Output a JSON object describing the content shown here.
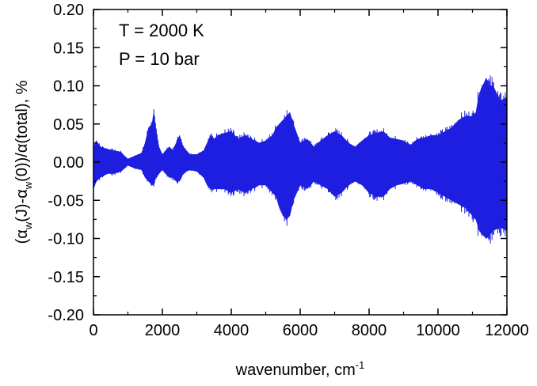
{
  "chart_data": {
    "type": "area",
    "title": "",
    "xlabel": "wavenumber, cm",
    "xlabel_sup": "-1",
    "ylabel_parts": {
      "p1": "(α",
      "p1_sub": "w",
      "p2": "(J)-α",
      "p2_sub": "w",
      "p3": "(0))/α(total), %"
    },
    "xlim": [
      0,
      12000
    ],
    "ylim": [
      -0.2,
      0.2
    ],
    "x_ticks": [
      0,
      2000,
      4000,
      6000,
      8000,
      10000,
      12000
    ],
    "x_tick_labels": [
      "0",
      "2000",
      "4000",
      "6000",
      "8000",
      "10000",
      "12000"
    ],
    "y_ticks": [
      0.2,
      0.15,
      0.1,
      0.05,
      0.0,
      -0.05,
      -0.1,
      -0.15,
      -0.2
    ],
    "y_tick_labels": [
      "0.20",
      "0.15",
      "0.10",
      "0.05",
      "0.00",
      "-0.05",
      "-0.10",
      "-0.15",
      "-0.20"
    ],
    "grid": false,
    "series_color": "#1f1fe0",
    "annotations": [
      "T = 2000 K",
      "P = 10 bar"
    ],
    "envelope": {
      "x": [
        0,
        80,
        200,
        400,
        600,
        800,
        900,
        1000,
        1200,
        1400,
        1500,
        1600,
        1700,
        1750,
        1800,
        1900,
        2000,
        2100,
        2200,
        2300,
        2400,
        2500,
        2600,
        2700,
        2800,
        3000,
        3200,
        3300,
        3400,
        3500,
        3600,
        3800,
        4000,
        4200,
        4400,
        4600,
        4800,
        5000,
        5200,
        5300,
        5400,
        5500,
        5600,
        5700,
        5800,
        6000,
        6200,
        6400,
        6600,
        6800,
        7000,
        7200,
        7400,
        7600,
        7800,
        8000,
        8200,
        8400,
        8600,
        8800,
        9000,
        9200,
        9400,
        9600,
        9800,
        10000,
        10200,
        10400,
        10600,
        10800,
        11000,
        11100,
        11200,
        11400,
        11500,
        11600,
        11800,
        12000
      ],
      "upper": [
        0.02,
        0.028,
        0.02,
        0.017,
        0.015,
        0.013,
        0.008,
        0.004,
        0.008,
        0.012,
        0.025,
        0.045,
        0.05,
        0.065,
        0.045,
        0.02,
        0.01,
        0.015,
        0.02,
        0.015,
        0.025,
        0.035,
        0.02,
        0.015,
        0.01,
        0.01,
        0.015,
        0.025,
        0.035,
        0.03,
        0.035,
        0.038,
        0.04,
        0.03,
        0.035,
        0.03,
        0.025,
        0.028,
        0.035,
        0.045,
        0.05,
        0.055,
        0.06,
        0.065,
        0.05,
        0.025,
        0.03,
        0.02,
        0.028,
        0.035,
        0.04,
        0.035,
        0.025,
        0.02,
        0.028,
        0.035,
        0.038,
        0.04,
        0.032,
        0.03,
        0.028,
        0.022,
        0.03,
        0.032,
        0.035,
        0.035,
        0.04,
        0.045,
        0.055,
        0.06,
        0.06,
        0.065,
        0.09,
        0.11,
        0.1,
        0.1,
        0.08,
        0.085
      ],
      "lower": [
        -0.035,
        -0.025,
        -0.02,
        -0.015,
        -0.015,
        -0.012,
        -0.008,
        -0.004,
        -0.008,
        -0.01,
        -0.02,
        -0.025,
        -0.03,
        -0.03,
        -0.02,
        -0.015,
        -0.01,
        -0.015,
        -0.02,
        -0.02,
        -0.025,
        -0.025,
        -0.015,
        -0.012,
        -0.01,
        -0.012,
        -0.02,
        -0.03,
        -0.035,
        -0.035,
        -0.035,
        -0.035,
        -0.04,
        -0.035,
        -0.04,
        -0.035,
        -0.03,
        -0.03,
        -0.04,
        -0.045,
        -0.06,
        -0.07,
        -0.075,
        -0.07,
        -0.05,
        -0.03,
        -0.035,
        -0.025,
        -0.03,
        -0.035,
        -0.045,
        -0.04,
        -0.03,
        -0.025,
        -0.03,
        -0.04,
        -0.045,
        -0.045,
        -0.035,
        -0.03,
        -0.028,
        -0.025,
        -0.03,
        -0.035,
        -0.035,
        -0.04,
        -0.045,
        -0.05,
        -0.055,
        -0.06,
        -0.07,
        -0.075,
        -0.09,
        -0.1,
        -0.095,
        -0.09,
        -0.085,
        -0.09
      ]
    }
  }
}
